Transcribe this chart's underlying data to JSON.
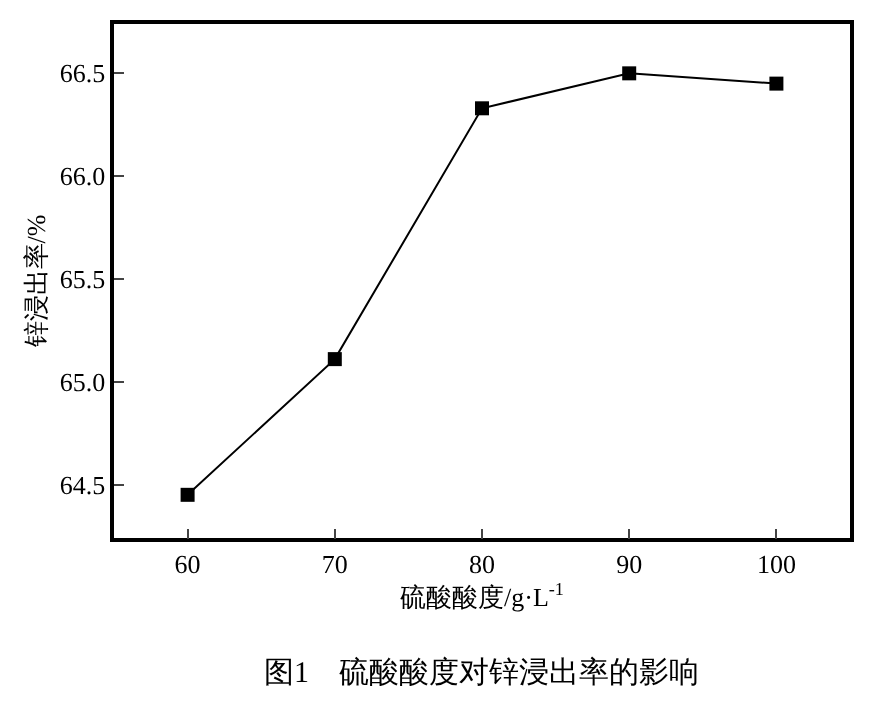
{
  "chart_data": {
    "type": "line",
    "xlabel": "硫酸酸度/g·L$^{-1}$",
    "ylabel": "锌浸出率/%",
    "annotations": [
      "图1　硫酸酸度对锌浸出率的影响"
    ],
    "x": [
      60,
      70,
      80,
      90,
      100
    ],
    "series": [
      {
        "color": "#000000",
        "values": [
          64.45,
          65.11,
          66.33,
          66.5,
          66.45
        ]
      }
    ],
    "xlim": [
      55,
      105
    ],
    "xticks": [
      60,
      70,
      80,
      90,
      100
    ],
    "ylim": [
      64.24,
      66.74
    ],
    "yticks": [
      64.5,
      {
        "value": 65,
        "label": "65.0"
      },
      65.5,
      {
        "value": 66,
        "label": "66.0"
      },
      66.5
    ],
    "marker": "square",
    "line_style": "solid"
  }
}
